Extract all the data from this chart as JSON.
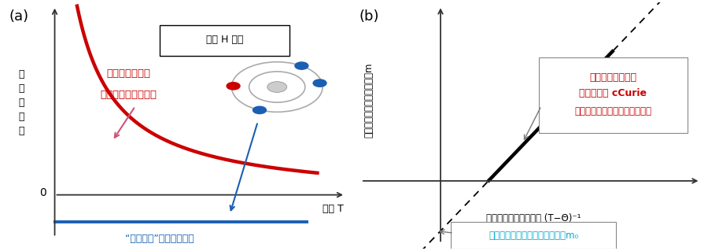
{
  "panel_a_label": "(a)",
  "panel_b_label": "(b)",
  "panel_a_ylabel": "磁\n取\n感\n磁\n率",
  "panel_a_box_text": "磁場 H 一定",
  "panel_a_red_text_line1": "不対電子による",
  "panel_a_red_text_line2": "ランジュバン常磁性",
  "panel_a_xlabel": "温度 T",
  "panel_a_blue_text": "“閉殼電子”による反磁性",
  "panel_b_label_str": "(b)",
  "panel_b_ylabel": "化合物の磁気モーメント，m",
  "panel_b_xlabel": "補正された温度の逆数 (T−Θ)⁻¹",
  "panel_b_red1": "不対電子の常磁性",
  "panel_b_red2": "による傾き c",
  "panel_b_red2sub": "Curie",
  "panel_b_red3": "（フリースピンの個数に比例）",
  "panel_b_cyan": "閉殼電子の反磁性による切片，m₀",
  "bg_color": "#ffffff",
  "red_color": "#cc0000",
  "blue_color": "#1a5fb4",
  "cyan_color": "#00aacc",
  "pink_arrow_color": "#cc5577",
  "gray_orbit_color": "#aaaaaa",
  "axis_color": "#333333"
}
